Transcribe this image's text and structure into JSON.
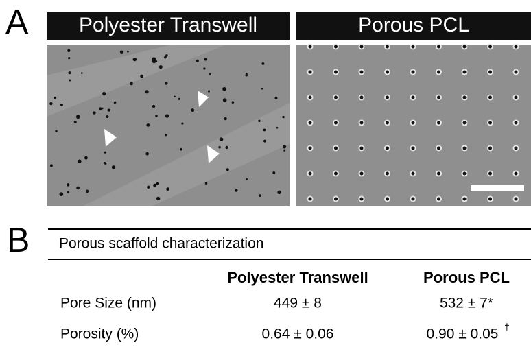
{
  "panel_a": {
    "label": "A",
    "images": [
      {
        "title": "Polyester Transwell"
      },
      {
        "title": "Porous PCL"
      }
    ]
  },
  "panel_b": {
    "label": "B",
    "table": {
      "title": "Porous scaffold characterization",
      "columns": [
        "Polyester Transwell",
        "Porous PCL"
      ],
      "rows": [
        {
          "label": "Pore Size (nm)",
          "cells": [
            {
              "text": "449 ± 8"
            },
            {
              "text": "532 ± 7*"
            }
          ]
        },
        {
          "label": "Porosity (%)",
          "cells": [
            {
              "text": "0.64 ± 0.06"
            },
            {
              "text": "0.90 ± 0.05",
              "sup": "†"
            }
          ]
        }
      ]
    }
  }
}
